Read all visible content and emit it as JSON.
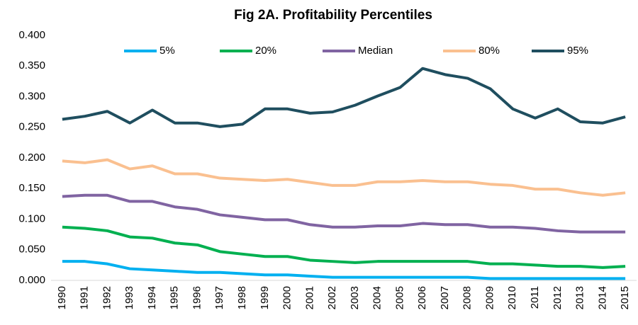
{
  "chart_data": {
    "type": "line",
    "title": "Fig 2A. Profitability Percentiles",
    "categories": [
      "1990",
      "1991",
      "1992",
      "1993",
      "1994",
      "1995",
      "1996",
      "1997",
      "1998",
      "1999",
      "2000",
      "2001",
      "2002",
      "2003",
      "2004",
      "2005",
      "2006",
      "2007",
      "2008",
      "2009",
      "2010",
      "2011",
      "2012",
      "2013",
      "2014",
      "2015"
    ],
    "series": [
      {
        "name": "5%",
        "color": "#00b0f0",
        "values": [
          0.031,
          0.031,
          0.027,
          0.019,
          0.017,
          0.015,
          0.013,
          0.013,
          0.011,
          0.009,
          0.009,
          0.007,
          0.005,
          0.005,
          0.005,
          0.005,
          0.005,
          0.005,
          0.005,
          0.003,
          0.003,
          0.003,
          0.003,
          0.003,
          0.003,
          0.003
        ]
      },
      {
        "name": "20%",
        "color": "#00b050",
        "values": [
          0.087,
          0.085,
          0.081,
          0.071,
          0.069,
          0.061,
          0.058,
          0.047,
          0.043,
          0.039,
          0.039,
          0.033,
          0.031,
          0.029,
          0.031,
          0.031,
          0.031,
          0.031,
          0.031,
          0.027,
          0.027,
          0.025,
          0.023,
          0.023,
          0.021,
          0.023
        ]
      },
      {
        "name": "Median",
        "color": "#8064a2",
        "values": [
          0.137,
          0.139,
          0.139,
          0.129,
          0.129,
          0.12,
          0.116,
          0.107,
          0.103,
          0.099,
          0.099,
          0.091,
          0.087,
          0.087,
          0.089,
          0.089,
          0.093,
          0.091,
          0.091,
          0.087,
          0.087,
          0.085,
          0.081,
          0.079,
          0.079,
          0.079
        ]
      },
      {
        "name": "80%",
        "color": "#fac090",
        "values": [
          0.195,
          0.192,
          0.197,
          0.182,
          0.187,
          0.174,
          0.174,
          0.167,
          0.165,
          0.163,
          0.165,
          0.16,
          0.155,
          0.155,
          0.161,
          0.161,
          0.163,
          0.161,
          0.161,
          0.157,
          0.155,
          0.149,
          0.149,
          0.143,
          0.139,
          0.143
        ]
      },
      {
        "name": "95%",
        "color": "#1f4e5f",
        "values": [
          0.263,
          0.268,
          0.276,
          0.257,
          0.278,
          0.257,
          0.257,
          0.251,
          0.255,
          0.28,
          0.28,
          0.273,
          0.275,
          0.286,
          0.301,
          0.315,
          0.346,
          0.336,
          0.33,
          0.313,
          0.28,
          0.265,
          0.28,
          0.259,
          0.257,
          0.267
        ]
      }
    ],
    "ylim": [
      0,
      0.4
    ],
    "yticks": [
      {
        "value": 0,
        "label": "0.000"
      },
      {
        "value": 0.05,
        "label": "0.050"
      },
      {
        "value": 0.1,
        "label": "0.100"
      },
      {
        "value": 0.15,
        "label": "0.150"
      },
      {
        "value": 0.2,
        "label": "0.200"
      },
      {
        "value": 0.25,
        "label": "0.250"
      },
      {
        "value": 0.3,
        "label": "0.300"
      },
      {
        "value": 0.35,
        "label": "0.350"
      },
      {
        "value": 0.4,
        "label": "0.400"
      }
    ],
    "legend": "top",
    "grid": false
  }
}
